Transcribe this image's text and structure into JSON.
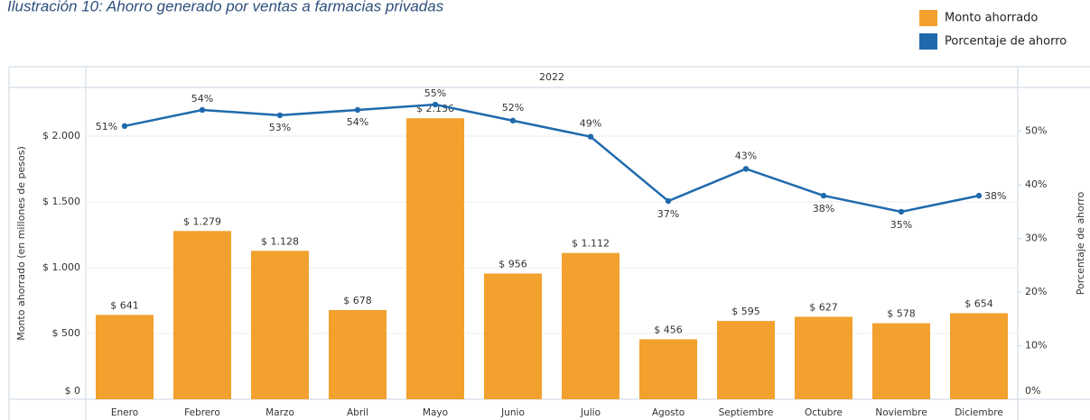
{
  "chart_data": {
    "type": "bar",
    "title": "Ilustración 10: Ahorro generado por ventas a farmacias privadas",
    "header": "2022",
    "ylabel": "Monto ahorrado (en millones de pesos)",
    "y2label": "Porcentaje de ahorro",
    "categories": [
      "Enero",
      "Febrero",
      "Marzo",
      "Abril",
      "Mayo",
      "Junio",
      "Julio",
      "Agosto",
      "Septiembre",
      "Octubre",
      "Noviembre",
      "Diciembre"
    ],
    "series": [
      {
        "name": "Monto ahorrado",
        "type": "bar",
        "color": "#f2a12e",
        "values": [
          641,
          1279,
          1128,
          678,
          2136,
          956,
          1112,
          456,
          595,
          627,
          578,
          654
        ],
        "value_labels": [
          "$ 641",
          "$ 1.279",
          "$ 1.128",
          "$ 678",
          "$ 2.136",
          "$ 956",
          "$ 1.112",
          "$ 456",
          "$ 595",
          "$ 627",
          "$ 578",
          "$ 654"
        ]
      },
      {
        "name": "Porcentaje de ahorro",
        "type": "line",
        "axis": "y2",
        "color": "#1f6aad",
        "values": [
          51,
          54,
          53,
          54,
          55,
          52,
          49,
          37,
          43,
          38,
          35,
          38
        ],
        "value_labels": [
          "51%",
          "54%",
          "53%",
          "54%",
          "55%",
          "52%",
          "49%",
          "37%",
          "43%",
          "38%",
          "35%",
          "38%"
        ]
      }
    ],
    "ylim": [
      0,
      2370
    ],
    "yticks": [
      {
        "value": 0,
        "label": "$ 0"
      },
      {
        "value": 500,
        "label": "$ 500"
      },
      {
        "value": 1000,
        "label": "$ 1.000"
      },
      {
        "value": 1500,
        "label": "$ 1.500"
      },
      {
        "value": 2000,
        "label": "$ 2.000"
      }
    ],
    "y2lim": [
      0,
      58.2
    ],
    "y2ticks": [
      {
        "value": 0,
        "label": "0%"
      },
      {
        "value": 10,
        "label": "10%"
      },
      {
        "value": 20,
        "label": "20%"
      },
      {
        "value": 30,
        "label": "30%"
      },
      {
        "value": 40,
        "label": "40%"
      },
      {
        "value": 50,
        "label": "50%"
      }
    ],
    "grid": true,
    "legend": "top-right"
  }
}
